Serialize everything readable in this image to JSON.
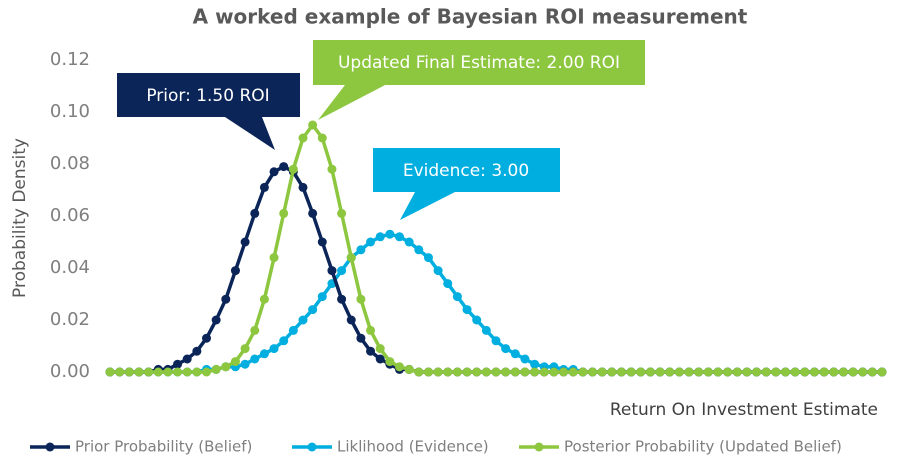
{
  "chart_data": {
    "type": "line",
    "title": "A worked example of Bayesian ROI measurement",
    "ylabel": "Probability Density",
    "xlabel": "Return On Investment Estimate",
    "annotations": [
      "Prior: 1.50 ROI",
      "Updated Final Estimate: 2.00 ROI",
      "Evidence: 3.00"
    ],
    "categories": [
      null,
      null,
      null,
      null,
      null,
      null,
      null,
      null,
      null,
      null,
      null,
      null,
      null,
      null,
      null,
      null,
      null,
      null,
      null,
      null,
      null,
      null,
      null,
      null,
      null,
      null,
      null,
      null,
      null,
      null,
      null,
      null,
      null,
      null,
      null,
      null,
      null,
      null,
      null,
      null,
      null,
      null,
      null,
      null,
      null,
      null,
      null,
      null,
      null,
      null,
      null,
      null,
      null,
      null,
      null,
      null,
      null,
      null,
      null,
      null,
      null,
      null,
      null,
      null,
      null,
      null,
      null,
      null,
      null,
      null,
      null,
      null,
      null,
      null,
      null,
      null,
      null,
      null,
      null,
      null,
      null
    ],
    "series": [
      {
        "name": "Prior Probability (Belief)",
        "color": "#0b2559",
        "values": [
          0,
          0,
          0,
          0,
          0,
          0.001,
          0.001,
          0.003,
          0.005,
          0.008,
          0.013,
          0.02,
          0.028,
          0.039,
          0.05,
          0.061,
          0.071,
          0.077,
          0.079,
          0.077,
          0.071,
          0.061,
          0.05,
          0.039,
          0.028,
          0.02,
          0.013,
          0.008,
          0.005,
          0.003,
          0.001,
          0.001,
          0,
          0,
          0,
          0,
          0,
          0,
          0,
          0,
          0,
          0,
          0,
          0,
          0,
          0,
          0,
          0,
          0,
          0,
          0,
          0,
          0,
          0,
          0,
          0,
          0,
          0,
          0,
          0,
          0,
          0,
          0,
          0,
          0,
          0,
          0,
          0,
          0,
          0,
          0,
          0,
          0,
          0,
          0,
          0,
          0,
          0,
          0,
          0,
          0
        ]
      },
      {
        "name": "Liklihood (Evidence)",
        "color": "#00aee0",
        "values": [
          0,
          0,
          0,
          0,
          0,
          0,
          0,
          0,
          0,
          0,
          0.001,
          0.001,
          0.002,
          0.002,
          0.003,
          0.005,
          0.007,
          0.009,
          0.012,
          0.016,
          0.02,
          0.024,
          0.029,
          0.034,
          0.039,
          0.044,
          0.047,
          0.05,
          0.052,
          0.053,
          0.052,
          0.05,
          0.047,
          0.044,
          0.039,
          0.034,
          0.029,
          0.024,
          0.02,
          0.016,
          0.012,
          0.009,
          0.007,
          0.005,
          0.003,
          0.002,
          0.002,
          0.001,
          0.001,
          0,
          0,
          0,
          0,
          0,
          0,
          0,
          0,
          0,
          0,
          0,
          0,
          0,
          0,
          0,
          0,
          0,
          0,
          0,
          0,
          0,
          0,
          0,
          0,
          0,
          0,
          0,
          0,
          0,
          0,
          0,
          0
        ]
      },
      {
        "name": "Posterior Probability (Updated Belief)",
        "color": "#8dc63f",
        "values": [
          0,
          0,
          0,
          0,
          0,
          0,
          0,
          0,
          0,
          0,
          0,
          0.001,
          0.002,
          0.004,
          0.009,
          0.016,
          0.028,
          0.044,
          0.061,
          0.078,
          0.09,
          0.095,
          0.09,
          0.078,
          0.061,
          0.044,
          0.028,
          0.016,
          0.009,
          0.004,
          0.002,
          0.001,
          0,
          0,
          0,
          0,
          0,
          0,
          0,
          0,
          0,
          0,
          0,
          0,
          0,
          0,
          0,
          0,
          0,
          0,
          0,
          0,
          0,
          0,
          0,
          0,
          0,
          0,
          0,
          0,
          0,
          0,
          0,
          0,
          0,
          0,
          0,
          0,
          0,
          0,
          0,
          0,
          0,
          0,
          0,
          0,
          0,
          0,
          0,
          0,
          0
        ]
      }
    ],
    "ylim": [
      0,
      0.12
    ],
    "yticks": [
      {
        "value": 0,
        "label": "0.00"
      },
      0.02,
      0.04,
      0.06,
      0.08,
      {
        "value": 0.1,
        "label": "0.10"
      },
      0.12
    ],
    "grid": false,
    "legend": "bottom"
  }
}
